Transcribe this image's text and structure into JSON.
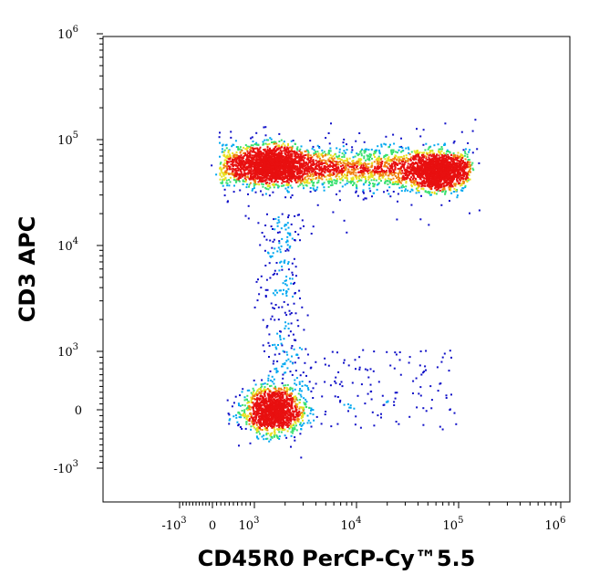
{
  "chart_data": {
    "type": "scatter",
    "title": "",
    "xlabel": "CD45R0 PerCP-Cy™5.5",
    "ylabel": "CD3 APC",
    "x_scale": "biexponential",
    "y_scale": "biexponential",
    "xlim": [
      -10000,
      1000000
    ],
    "ylim": [
      -2000,
      1000000
    ],
    "grid": false,
    "legend": "none",
    "x_ticks": [
      {
        "value": -1000,
        "base": "-10",
        "exp": "3"
      },
      {
        "value": 0,
        "base": "0",
        "exp": ""
      },
      {
        "value": 1000,
        "base": "10",
        "exp": "3"
      },
      {
        "value": 10000,
        "base": "10",
        "exp": "4"
      },
      {
        "value": 100000,
        "base": "10",
        "exp": "5"
      },
      {
        "value": 1000000,
        "base": "10",
        "exp": "6"
      }
    ],
    "y_ticks": [
      {
        "value": 1000000,
        "base": "10",
        "exp": "6"
      },
      {
        "value": 100000,
        "base": "10",
        "exp": "5"
      },
      {
        "value": 10000,
        "base": "10",
        "exp": "4"
      },
      {
        "value": 1000,
        "base": "10",
        "exp": "3"
      },
      {
        "value": 0,
        "base": "0",
        "exp": ""
      },
      {
        "value": -1000,
        "base": "-10",
        "exp": "3"
      }
    ],
    "color_scale": [
      "#1010c8",
      "#00a8f0",
      "#38e070",
      "#e8e020",
      "#f08010",
      "#e81010"
    ],
    "populations": [
      {
        "x_center": 1500,
        "y_center": 60000,
        "density": "high"
      },
      {
        "x_center": 60000,
        "y_center": 50000,
        "density": "high"
      },
      {
        "x_center": 8000,
        "y_center": 55000,
        "density": "medium"
      },
      {
        "x_center": 1500,
        "y_center": 0,
        "density": "high"
      },
      {
        "x_center": 1800,
        "y_center": 3000,
        "density": "low"
      }
    ]
  }
}
